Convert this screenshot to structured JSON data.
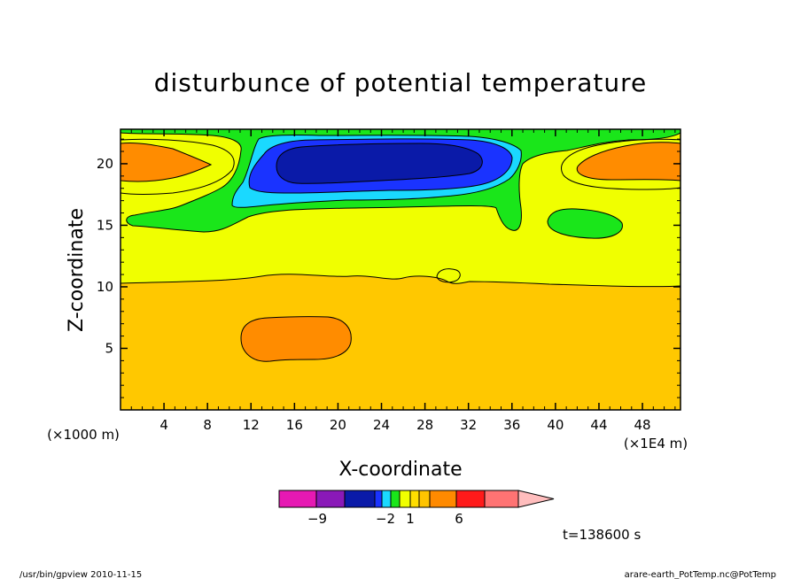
{
  "chart_data": {
    "type": "heatmap",
    "title": "disturbunce of potential temperature",
    "xlabel": "X-coordinate",
    "ylabel": "Z-coordinate",
    "x_unit_label": "(×1E4 m)",
    "y_unit_label": "(×1000 m)",
    "xlim": [
      0,
      51.5
    ],
    "ylim": [
      0,
      22.8
    ],
    "x_ticks": [
      4,
      8,
      12,
      16,
      20,
      24,
      28,
      32,
      36,
      40,
      44,
      48
    ],
    "x_tick_labels": [
      "4",
      "8",
      "12",
      "16",
      "20",
      "24",
      "28",
      "32",
      "36",
      "40",
      "44",
      "48"
    ],
    "y_ticks": [
      5,
      10,
      15,
      20
    ],
    "y_tick_labels": [
      "5",
      "10",
      "15",
      "20"
    ],
    "grid": false,
    "colorbar": {
      "labels": [
        {
          "value": -9,
          "text": "−9"
        },
        {
          "value": -2,
          "text": "−2"
        },
        {
          "value": 1,
          "text": "1"
        },
        {
          "value": 6,
          "text": "6"
        }
      ],
      "colors": [
        "#e619b3",
        "#8a19b8",
        "#0a1aa8",
        "#1a33ff",
        "#1ad9ff",
        "#1ae61a",
        "#f0ff00",
        "#ffde00",
        "#ffc400",
        "#ff8a00",
        "#ff1a1a",
        "#ff7373",
        "#ffbdbd"
      ]
    },
    "regions": [
      {
        "name": "negative anomaly core",
        "level": "-9 to -2",
        "x_range": [
          14,
          36
        ],
        "z_range": [
          18,
          21
        ]
      },
      {
        "name": "positive anomaly lower",
        "level": "1 to 6",
        "x_range": [
          11,
          21
        ],
        "z_range": [
          4,
          8
        ]
      },
      {
        "name": "positive anomaly upper left",
        "level": "1 to 6",
        "x_range": [
          0,
          9
        ],
        "z_range": [
          18,
          22
        ]
      },
      {
        "name": "positive anomaly upper right",
        "level": "1 to 6",
        "x_range": [
          41,
          51.5
        ],
        "z_range": [
          18,
          22
        ]
      }
    ]
  },
  "time_label": "t=138600 s",
  "footer_left": "/usr/bin/gpview  2010-11-15",
  "footer_right": "arare-earth_PotTemp.nc@PotTemp"
}
